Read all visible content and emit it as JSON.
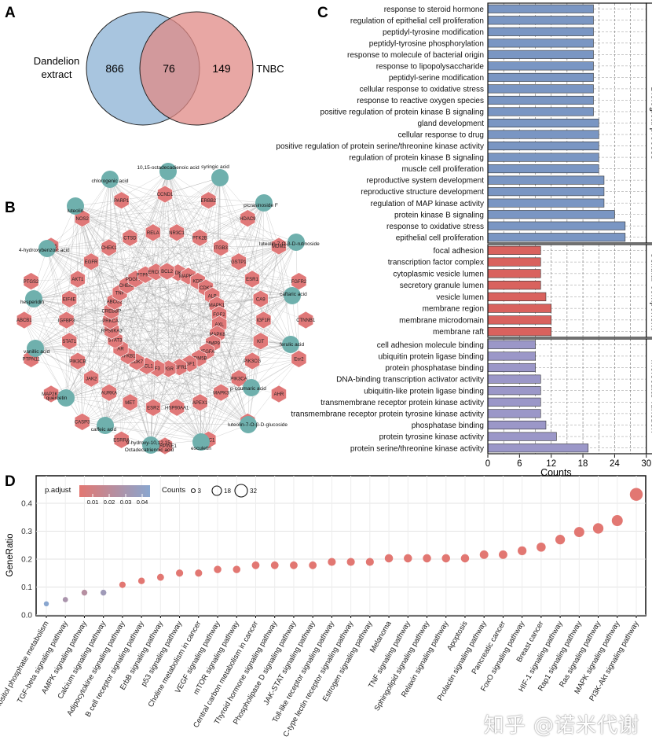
{
  "colors": {
    "venn_left": "#9fbfdc",
    "venn_right": "#e08a86",
    "bp_bar": "#7a96c3",
    "cc_bar": "#d9625e",
    "mf_bar": "#9b97c8",
    "target_node": "#e07878",
    "compound_node": "#6fb0ad",
    "dot_low": "#e27772",
    "dot_high": "#89a6cf"
  },
  "panels": {
    "a": "A",
    "b": "B",
    "c": "C",
    "d": "D"
  },
  "venn": {
    "left_label_line1": "Dandelion",
    "left_label_line2": "extract",
    "right_label": "TNBC",
    "left_only": "866",
    "overlap": "76",
    "right_only": "149"
  },
  "network": {
    "compounds": [
      "10,15-octadecadienoic acid",
      "syringic acid",
      "chlorogenic acid",
      "picrasinoside F",
      "luteolin",
      "luteolin-7-O-β-D-rutinoside",
      "4-hydroxybenzoic acid",
      "caftaric acid",
      "hesperidin",
      "ferulic acid",
      "vanillic acid",
      "p-coumaric acid",
      "quercetin",
      "luteolin-7-O-β-D-glucoside",
      "caffeic acid",
      "esculetin",
      "9-hydroxy-10,12,15-",
      "Octadecatrienoic acid"
    ],
    "targets": [
      "CCND1",
      "ERBB2",
      "HDAC9",
      "MDM2",
      "FGFR2",
      "CTNNB1",
      "Esr2",
      "AHR",
      "PLK1",
      "RAC1",
      "SERPINE1",
      "ESRRA",
      "CASP3",
      "MAP2K1",
      "PTPN11",
      "ABCB1",
      "PTGS2",
      "CCL5",
      "NOS2",
      "PARP1",
      "NR3C1",
      "PTK2B",
      "ITGB3",
      "GSTP1",
      "ESR1",
      "CA9",
      "IGF1R",
      "KIT",
      "PIK3CG",
      "PIK3CA",
      "MAPK3",
      "APEX1",
      "HSP90AA1",
      "ESR2",
      "MET",
      "AURKA",
      "JAK2",
      "PIK3CB",
      "STAT1",
      "IGFBP3",
      "EIF4E",
      "AKT1",
      "EGFR",
      "CHEK1",
      "CTSD",
      "RELA",
      "CDK1",
      "MAPK14",
      "KDR",
      "CDK2",
      "ALB",
      "MAPK1",
      "FGF2",
      "AXL",
      "MAPK8",
      "MMP9",
      "VEGFA",
      "KDM5B",
      "IGF1",
      "FGFR1",
      "PGR",
      "F3",
      "MCL1",
      "CDK7",
      "NFKB1",
      "AR",
      "STAT3",
      "RPS6KA3",
      "PRKCA",
      "CREBBP",
      "ABCG2",
      "TNF",
      "CHEK2",
      "PDGFRB",
      "PTPN22",
      "ERCC1",
      "BCL2"
    ]
  },
  "go": {
    "groups": [
      {
        "name": "Biological process",
        "terms": [
          "response to steroid hormone",
          "regulation of epithelial cell proliferation",
          "peptidyl-tyrosine modification",
          "peptidyl-tyrosine phosphorylation",
          "response to molecule of bacterial origin",
          "response to lipopolysaccharide",
          "peptidyl-serine modification",
          "cellular response to oxidative stress",
          "response to reactive oxygen species",
          "positive regulation of protein kinase B signaling",
          "gland development",
          "cellular response to drug",
          "positive regulation of protein serine/threonine kinase activity",
          "regulation of protein kinase B signaling",
          "muscle cell proliferation",
          "reproductive system development",
          "reproductive structure development",
          "regulation of MAP kinase activity",
          "protein kinase B signaling",
          "response to oxidative stress",
          "epithelial cell proliferation"
        ],
        "counts": [
          20,
          20,
          20,
          20,
          20,
          20,
          20,
          20,
          20,
          20,
          21,
          21,
          21,
          21,
          21,
          22,
          22,
          22,
          24,
          26,
          26
        ]
      },
      {
        "name": "Cellular component",
        "terms": [
          "focal adhesion",
          "transcription factor complex",
          "cytoplasmic vesicle lumen",
          "secretory granule lumen",
          "vesicle lumen",
          "membrane region",
          "membrane microdomain",
          "membrane raft"
        ],
        "counts": [
          10,
          10,
          10,
          10,
          11,
          12,
          12,
          12
        ]
      },
      {
        "name": "Molecular function",
        "terms": [
          "cell adhesion molecule binding",
          "ubiquitin protein ligase binding",
          "protein phosphatase binding",
          "DNA-binding transcription activator activity",
          "ubiquitin-like protein ligase binding",
          "transmembrane receptor protein kinase activity",
          "transmembrane receptor protein tyrosine kinase activity",
          "phosphatase binding",
          "protein tyrosine kinase activity",
          "protein serine/threonine kinase activity"
        ],
        "counts": [
          9,
          9,
          9,
          10,
          10,
          10,
          10,
          11,
          13,
          19
        ]
      }
    ],
    "ticks": [
      "0",
      "6",
      "12",
      "18",
      "24",
      "30"
    ],
    "xmax": 30,
    "xlabel": "Counts"
  },
  "chart_data": {
    "type": "scatter",
    "ylabel": "GeneRatio",
    "ylim": [
      0,
      0.45
    ],
    "yticks": [
      "0.0",
      "0.1",
      "0.2",
      "0.3",
      "0.4"
    ],
    "legend": {
      "padjust_title": "p.adjust",
      "padjust_ticks": [
        "0.01",
        "0.02",
        "0.03",
        "0.04"
      ],
      "counts_title": "Counts",
      "counts_values": [
        "3",
        "18",
        "32"
      ]
    },
    "categories": [
      "Inositol phosphate metabolism",
      "TGF-beta signaling pathway",
      "AMPK signaling pathway",
      "Calcium signaling pathway",
      "Adipocytokine signaling pathway",
      "B cell receptor signaling pathway",
      "ErbB signaling pathway",
      "p53 signaling pathway",
      "Choline metabolism in cancer",
      "VEGF signaling pathway",
      "mTOR signaling pathway",
      "Central carbon metabolism in cancer",
      "Thyroid hormone signaling pathway",
      "Phospholipase D signaling pathway",
      "JAK-STAT signaling pathway",
      "Toll-like receptor signaling pathway",
      "C-type lectin receptor signaling pathway",
      "Estrogen signaling pathway",
      "Melanoma",
      "TNF signaling pathway",
      "Sphingolipid signaling pathway",
      "Relaxin signaling pathway",
      "Apoptosis",
      "Prolactin signaling pathway",
      "Pancreatic cancer",
      "FoxO signaling pathway",
      "Breast cancer",
      "HIF-1 signaling pathway",
      "Rap1 signaling pathway",
      "Ras signaling pathway",
      "MAPK signaling pathway",
      "PI3K-Akt signaling pathway"
    ],
    "gene_ratio": [
      0.04,
      0.055,
      0.08,
      0.08,
      0.108,
      0.122,
      0.135,
      0.15,
      0.15,
      0.163,
      0.163,
      0.178,
      0.178,
      0.178,
      0.178,
      0.19,
      0.19,
      0.19,
      0.203,
      0.203,
      0.203,
      0.203,
      0.203,
      0.216,
      0.216,
      0.23,
      0.243,
      0.27,
      0.297,
      0.31,
      0.338,
      0.432
    ],
    "p_adjust": [
      0.045,
      0.03,
      0.025,
      0.035,
      0.005,
      0.005,
      0.005,
      0.005,
      0.005,
      0.005,
      0.005,
      0.005,
      0.005,
      0.005,
      0.005,
      0.005,
      0.005,
      0.005,
      0.005,
      0.005,
      0.005,
      0.005,
      0.005,
      0.005,
      0.005,
      0.005,
      0.005,
      0.005,
      0.005,
      0.005,
      0.005,
      0.005
    ],
    "counts": [
      3,
      4,
      6,
      6,
      8,
      9,
      10,
      11,
      11,
      12,
      12,
      13,
      13,
      13,
      13,
      14,
      14,
      14,
      15,
      15,
      15,
      15,
      15,
      16,
      16,
      17,
      18,
      20,
      22,
      23,
      25,
      32
    ]
  },
  "watermark": "知乎 @诺米代谢"
}
